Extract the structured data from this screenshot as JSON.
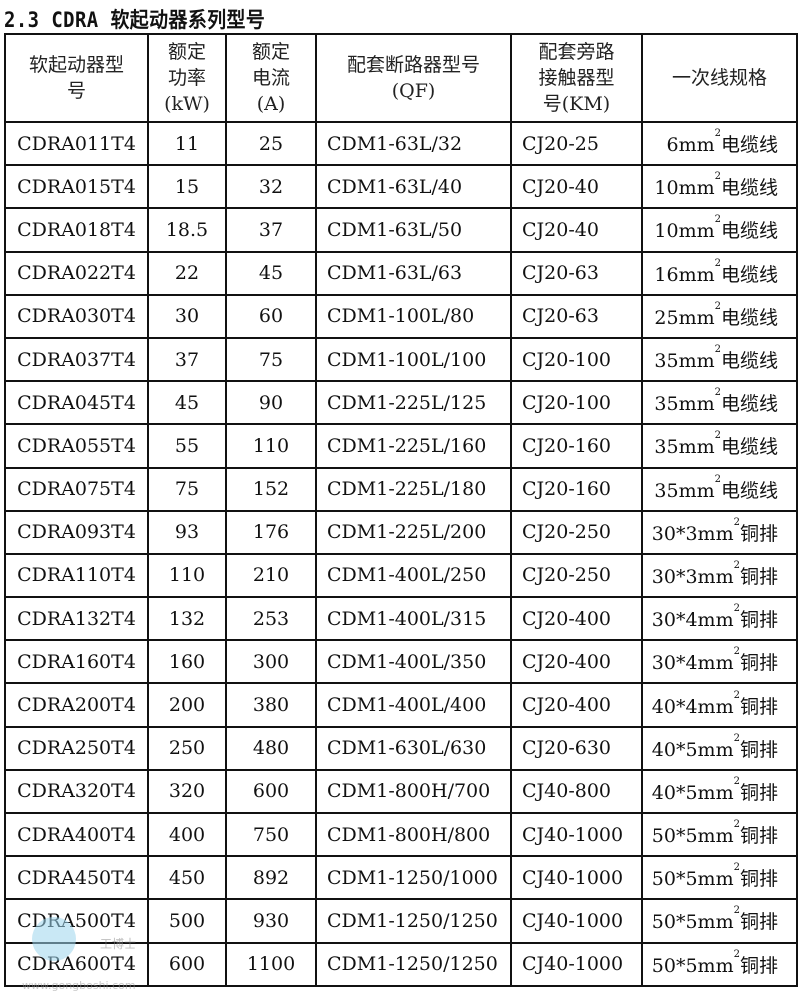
{
  "title": "2.3 CDRA 软起动器系列型号",
  "headers": [
    "软起动器型号",
    "额定功率(kW)",
    "额定电流(A)",
    "配套断路器型号(QF)",
    "配套旁路接触器型号(KM)",
    "一次线规格"
  ],
  "header_lines": [
    [
      "软起动器型",
      "号"
    ],
    [
      "额定",
      "功率",
      "(kW)"
    ],
    [
      "额定",
      "电流",
      "(A)"
    ],
    [
      "配套断路器型号",
      "(QF)"
    ],
    [
      "配套旁路",
      "接触器型",
      "号(KM)"
    ],
    [
      "一次线规格"
    ]
  ],
  "rows": [
    {
      "model": "CDRA011T4",
      "power": "11",
      "current": "25",
      "qf": "CDM1-63L/32",
      "km": "CJ20-25",
      "cable": {
        "size": "6mm",
        "sup": "2",
        "kind": "电缆线"
      }
    },
    {
      "model": "CDRA015T4",
      "power": "15",
      "current": "32",
      "qf": "CDM1-63L/40",
      "km": "CJ20-40",
      "cable": {
        "size": "10mm",
        "sup": "2",
        "kind": "电缆线"
      }
    },
    {
      "model": "CDRA018T4",
      "power": "18.5",
      "current": "37",
      "qf": "CDM1-63L/50",
      "km": "CJ20-40",
      "cable": {
        "size": "10mm",
        "sup": "2",
        "kind": "电缆线"
      }
    },
    {
      "model": "CDRA022T4",
      "power": "22",
      "current": "45",
      "qf": "CDM1-63L/63",
      "km": "CJ20-63",
      "cable": {
        "size": "16mm",
        "sup": "2",
        "kind": "电缆线"
      }
    },
    {
      "model": "CDRA030T4",
      "power": "30",
      "current": "60",
      "qf": "CDM1-100L/80",
      "km": "CJ20-63",
      "cable": {
        "size": "25mm",
        "sup": "2",
        "kind": "电缆线"
      }
    },
    {
      "model": "CDRA037T4",
      "power": "37",
      "current": "75",
      "qf": "CDM1-100L/100",
      "km": "CJ20-100",
      "cable": {
        "size": "35mm",
        "sup": "2",
        "kind": "电缆线"
      }
    },
    {
      "model": "CDRA045T4",
      "power": "45",
      "current": "90",
      "qf": "CDM1-225L/125",
      "km": "CJ20-100",
      "cable": {
        "size": "35mm",
        "sup": "2",
        "kind": "电缆线"
      }
    },
    {
      "model": "CDRA055T4",
      "power": "55",
      "current": "110",
      "qf": "CDM1-225L/160",
      "km": "CJ20-160",
      "cable": {
        "size": "35mm",
        "sup": "2",
        "kind": "电缆线"
      }
    },
    {
      "model": "CDRA075T4",
      "power": "75",
      "current": "152",
      "qf": "CDM1-225L/180",
      "km": "CJ20-160",
      "cable": {
        "size": "35mm",
        "sup": "2",
        "kind": "电缆线"
      }
    },
    {
      "model": "CDRA093T4",
      "power": "93",
      "current": "176",
      "qf": "CDM1-225L/200",
      "km": "CJ20-250",
      "cable": {
        "size": "30*3mm",
        "sup": "2",
        "kind": "铜排"
      }
    },
    {
      "model": "CDRA110T4",
      "power": "110",
      "current": "210",
      "qf": "CDM1-400L/250",
      "km": "CJ20-250",
      "cable": {
        "size": "30*3mm",
        "sup": "2",
        "kind": "铜排"
      }
    },
    {
      "model": "CDRA132T4",
      "power": "132",
      "current": "253",
      "qf": "CDM1-400L/315",
      "km": "CJ20-400",
      "cable": {
        "size": "30*4mm",
        "sup": "2",
        "kind": "铜排"
      }
    },
    {
      "model": "CDRA160T4",
      "power": "160",
      "current": "300",
      "qf": "CDM1-400L/350",
      "km": "CJ20-400",
      "cable": {
        "size": "30*4mm",
        "sup": "2",
        "kind": "铜排"
      }
    },
    {
      "model": "CDRA200T4",
      "power": "200",
      "current": "380",
      "qf": "CDM1-400L/400",
      "km": "CJ20-400",
      "cable": {
        "size": "40*4mm",
        "sup": "2",
        "kind": "铜排"
      }
    },
    {
      "model": "CDRA250T4",
      "power": "250",
      "current": "480",
      "qf": "CDM1-630L/630",
      "km": "CJ20-630",
      "cable": {
        "size": "40*5mm",
        "sup": "2",
        "kind": "铜排"
      }
    },
    {
      "model": "CDRA320T4",
      "power": "320",
      "current": "600",
      "qf": "CDM1-800H/700",
      "km": "CJ40-800",
      "cable": {
        "size": "40*5mm",
        "sup": "2",
        "kind": "铜排"
      }
    },
    {
      "model": "CDRA400T4",
      "power": "400",
      "current": "750",
      "qf": "CDM1-800H/800",
      "km": "CJ40-1000",
      "cable": {
        "size": "50*5mm",
        "sup": "2",
        "kind": "铜排"
      }
    },
    {
      "model": "CDRA450T4",
      "power": "450",
      "current": "892",
      "qf": "CDM1-1250/1000",
      "km": "CJ40-1000",
      "cable": {
        "size": "50*5mm",
        "sup": "2",
        "kind": "铜排"
      }
    },
    {
      "model": "CDRA500T4",
      "power": "500",
      "current": "930",
      "qf": "CDM1-1250/1250",
      "km": "CJ40-1000",
      "cable": {
        "size": "50*5mm",
        "sup": "2",
        "kind": "铜排"
      }
    },
    {
      "model": "CDRA600T4",
      "power": "600",
      "current": "1100",
      "qf": "CDM1-1250/1250",
      "km": "CJ40-1000",
      "cable": {
        "size": "50*5mm",
        "sup": "2",
        "kind": "铜排"
      }
    }
  ],
  "watermark": {
    "name": "工博士",
    "url": "www.gongboshi.com"
  }
}
